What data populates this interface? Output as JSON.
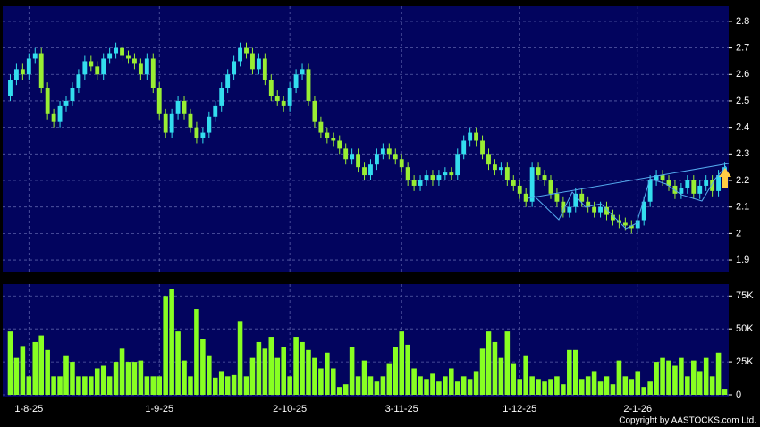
{
  "chart_data": [
    {
      "type": "candlestick",
      "open": [
        2.52,
        2.58,
        2.62,
        2.6,
        2.66,
        2.68,
        2.55,
        2.45,
        2.42,
        2.48,
        2.5,
        2.55,
        2.6,
        2.65,
        2.63,
        2.6,
        2.66,
        2.68,
        2.7,
        2.67,
        2.66,
        2.64,
        2.6,
        2.66,
        2.55,
        2.45,
        2.38,
        2.45,
        2.5,
        2.45,
        2.4,
        2.36,
        2.38,
        2.44,
        2.48,
        2.55,
        2.6,
        2.65,
        2.7,
        2.68,
        2.62,
        2.66,
        2.58,
        2.52,
        2.5,
        2.48,
        2.55,
        2.6,
        2.62,
        2.5,
        2.42,
        2.38,
        2.36,
        2.35,
        2.32,
        2.28,
        2.3,
        2.25,
        2.22,
        2.26,
        2.3,
        2.32,
        2.3,
        2.28,
        2.25,
        2.2,
        2.18,
        2.2,
        2.22,
        2.2,
        2.22,
        2.23,
        2.22,
        2.3,
        2.35,
        2.38,
        2.35,
        2.3,
        2.26,
        2.24,
        2.25,
        2.2,
        2.18,
        2.15,
        2.12,
        2.25,
        2.22,
        2.2,
        2.15,
        2.12,
        2.08,
        2.1,
        2.15,
        2.12,
        2.1,
        2.08,
        2.1,
        2.07,
        2.05,
        2.04,
        2.03,
        2.02,
        2.05,
        2.12,
        2.2,
        2.22,
        2.2,
        2.18,
        2.15,
        2.17,
        2.2,
        2.15,
        2.18,
        2.2,
        2.16,
        2.22
      ],
      "high": [
        2.6,
        2.64,
        2.64,
        2.68,
        2.7,
        2.7,
        2.57,
        2.47,
        2.5,
        2.52,
        2.57,
        2.62,
        2.67,
        2.67,
        2.65,
        2.68,
        2.7,
        2.72,
        2.72,
        2.69,
        2.68,
        2.66,
        2.68,
        2.68,
        2.57,
        2.47,
        2.47,
        2.52,
        2.52,
        2.47,
        2.42,
        2.4,
        2.46,
        2.5,
        2.57,
        2.62,
        2.67,
        2.72,
        2.72,
        2.7,
        2.68,
        2.68,
        2.6,
        2.54,
        2.52,
        2.57,
        2.62,
        2.64,
        2.64,
        2.52,
        2.44,
        2.4,
        2.38,
        2.37,
        2.34,
        2.32,
        2.32,
        2.27,
        2.28,
        2.32,
        2.34,
        2.34,
        2.32,
        2.3,
        2.27,
        2.22,
        2.22,
        2.24,
        2.24,
        2.24,
        2.25,
        2.25,
        2.32,
        2.37,
        2.4,
        2.4,
        2.37,
        2.32,
        2.28,
        2.27,
        2.27,
        2.22,
        2.2,
        2.17,
        2.27,
        2.27,
        2.24,
        2.22,
        2.17,
        2.14,
        2.12,
        2.17,
        2.17,
        2.14,
        2.12,
        2.12,
        2.12,
        2.09,
        2.07,
        2.06,
        2.05,
        2.07,
        2.14,
        2.22,
        2.24,
        2.24,
        2.22,
        2.2,
        2.19,
        2.22,
        2.22,
        2.2,
        2.22,
        2.22,
        2.24,
        2.27
      ],
      "low": [
        2.5,
        2.56,
        2.58,
        2.58,
        2.64,
        2.53,
        2.43,
        2.4,
        2.4,
        2.46,
        2.48,
        2.53,
        2.58,
        2.61,
        2.58,
        2.58,
        2.64,
        2.66,
        2.65,
        2.64,
        2.62,
        2.58,
        2.58,
        2.53,
        2.43,
        2.36,
        2.36,
        2.43,
        2.43,
        2.38,
        2.34,
        2.34,
        2.36,
        2.42,
        2.46,
        2.53,
        2.58,
        2.63,
        2.66,
        2.6,
        2.6,
        2.56,
        2.5,
        2.48,
        2.46,
        2.46,
        2.53,
        2.58,
        2.48,
        2.4,
        2.36,
        2.34,
        2.33,
        2.3,
        2.26,
        2.26,
        2.23,
        2.2,
        2.2,
        2.24,
        2.28,
        2.28,
        2.26,
        2.23,
        2.18,
        2.16,
        2.16,
        2.18,
        2.18,
        2.18,
        2.2,
        2.2,
        2.2,
        2.28,
        2.33,
        2.33,
        2.28,
        2.24,
        2.22,
        2.22,
        2.18,
        2.16,
        2.13,
        2.1,
        2.1,
        2.2,
        2.18,
        2.13,
        2.1,
        2.06,
        2.06,
        2.08,
        2.1,
        2.08,
        2.06,
        2.06,
        2.05,
        2.03,
        2.02,
        2.01,
        2.0,
        2.0,
        2.03,
        2.1,
        2.18,
        2.18,
        2.16,
        2.13,
        2.13,
        2.15,
        2.13,
        2.13,
        2.16,
        2.14,
        2.14,
        2.2
      ],
      "close": [
        2.58,
        2.62,
        2.6,
        2.66,
        2.68,
        2.55,
        2.45,
        2.42,
        2.48,
        2.5,
        2.55,
        2.6,
        2.65,
        2.63,
        2.6,
        2.66,
        2.68,
        2.7,
        2.67,
        2.66,
        2.64,
        2.6,
        2.66,
        2.55,
        2.45,
        2.38,
        2.45,
        2.5,
        2.45,
        2.4,
        2.36,
        2.38,
        2.44,
        2.48,
        2.55,
        2.6,
        2.65,
        2.7,
        2.68,
        2.62,
        2.66,
        2.58,
        2.52,
        2.5,
        2.48,
        2.55,
        2.6,
        2.62,
        2.5,
        2.42,
        2.38,
        2.36,
        2.35,
        2.32,
        2.28,
        2.3,
        2.25,
        2.22,
        2.26,
        2.3,
        2.32,
        2.3,
        2.28,
        2.25,
        2.2,
        2.18,
        2.2,
        2.22,
        2.2,
        2.22,
        2.23,
        2.22,
        2.3,
        2.35,
        2.38,
        2.35,
        2.3,
        2.26,
        2.24,
        2.25,
        2.2,
        2.18,
        2.15,
        2.12,
        2.25,
        2.22,
        2.2,
        2.15,
        2.12,
        2.08,
        2.1,
        2.15,
        2.12,
        2.1,
        2.08,
        2.1,
        2.07,
        2.05,
        2.04,
        2.03,
        2.02,
        2.05,
        2.12,
        2.2,
        2.22,
        2.2,
        2.18,
        2.15,
        2.17,
        2.2,
        2.15,
        2.18,
        2.2,
        2.16,
        2.22,
        2.25
      ],
      "up_color": "#33ddee",
      "down_color": "#99ee33",
      "ylim": [
        1.853,
        2.857
      ],
      "yticks": [
        1.9,
        2,
        2.1,
        2.2,
        2.3,
        2.4,
        2.5,
        2.6,
        2.7,
        2.8
      ],
      "grid": true
    },
    {
      "type": "bar",
      "categories": [
        null,
        null,
        null,
        "1-8-25",
        null,
        null,
        null,
        null,
        null,
        null,
        null,
        null,
        null,
        null,
        null,
        null,
        null,
        null,
        null,
        null,
        null,
        null,
        null,
        null,
        "1-9-25",
        null,
        null,
        null,
        null,
        null,
        null,
        null,
        null,
        null,
        null,
        null,
        null,
        null,
        null,
        null,
        null,
        null,
        null,
        null,
        null,
        "2-10-25",
        null,
        null,
        null,
        null,
        null,
        null,
        null,
        null,
        null,
        null,
        null,
        null,
        null,
        null,
        null,
        null,
        null,
        "3-11-25",
        null,
        null,
        null,
        null,
        null,
        null,
        null,
        null,
        null,
        null,
        null,
        null,
        null,
        null,
        null,
        null,
        null,
        null,
        "1-12-25",
        null,
        null,
        null,
        null,
        null,
        null,
        null,
        null,
        null,
        null,
        null,
        null,
        null,
        null,
        null,
        null,
        null,
        null,
        "2-1-26",
        null,
        null,
        null,
        null,
        null,
        null,
        null,
        null,
        null,
        null,
        null,
        null,
        null,
        null
      ],
      "values": [
        48000,
        28000,
        37000,
        14000,
        40000,
        45000,
        34000,
        14000,
        14000,
        30000,
        25000,
        14000,
        14000,
        14000,
        20000,
        22000,
        14000,
        25000,
        35000,
        25000,
        25000,
        26000,
        14000,
        14000,
        14000,
        75000,
        80000,
        48000,
        26000,
        14000,
        65000,
        42000,
        30000,
        13000,
        18000,
        14000,
        15000,
        56000,
        14000,
        28000,
        40000,
        35000,
        44000,
        28000,
        36000,
        14000,
        44000,
        40000,
        34000,
        28000,
        20000,
        32000,
        20000,
        6000,
        8000,
        36000,
        14000,
        26000,
        14000,
        10000,
        14000,
        24000,
        36000,
        48000,
        38000,
        20000,
        14000,
        12000,
        16000,
        10000,
        14000,
        20000,
        10000,
        14000,
        12000,
        18000,
        35000,
        48000,
        40000,
        28000,
        48000,
        24000,
        12000,
        30000,
        14000,
        12000,
        10000,
        12000,
        14000,
        8000,
        34000,
        34000,
        12000,
        14000,
        18000,
        10000,
        14000,
        8000,
        26000,
        14000,
        12000,
        18000,
        6000,
        10000,
        25000,
        28000,
        26000,
        22000,
        28000,
        14000,
        26000,
        18000,
        28000,
        14000,
        32000,
        4000
      ],
      "color": "#88ff22",
      "ylim": [
        0,
        84000
      ],
      "yticks": [
        {
          "value": 0,
          "label": "0"
        },
        {
          "value": 25000,
          "label": "25K"
        },
        {
          "value": 50000,
          "label": "50K"
        },
        {
          "value": 75000,
          "label": "75K"
        }
      ],
      "grid": true,
      "footnote": "Copyright by AASTOCKS.com Ltd."
    }
  ]
}
